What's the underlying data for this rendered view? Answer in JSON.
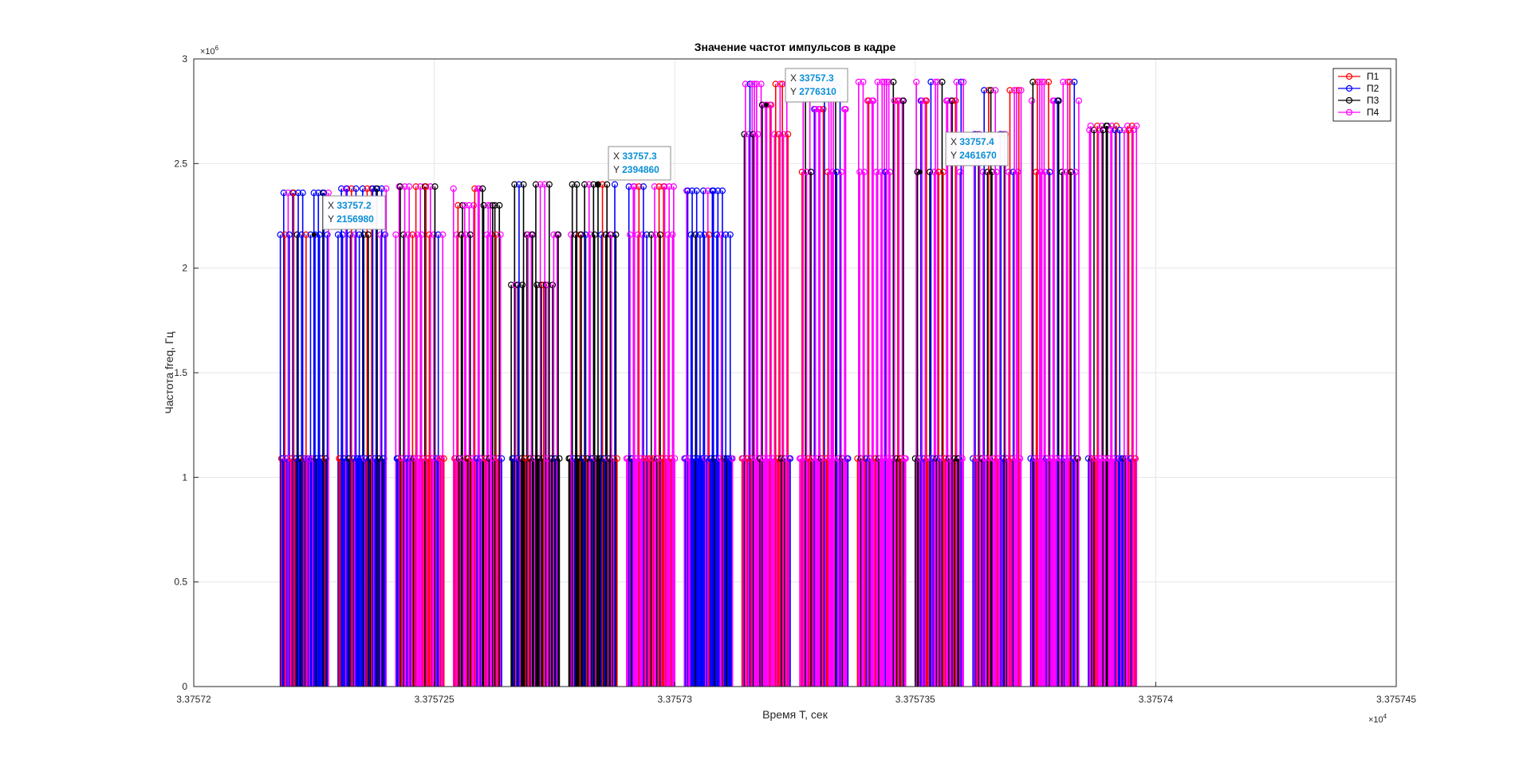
{
  "chart_data": {
    "type": "stem",
    "title": "Значение частот импульсов в кадре",
    "xlabel": "Время T, сек",
    "ylabel": "Частота freq, Гц",
    "xlim": [
      3.37572,
      3.375745
    ],
    "ylim": [
      0,
      3
    ],
    "x_scale_exponent_label": "×10",
    "x_scale_exponent_power": "4",
    "y_scale_exponent_label": "×10",
    "y_scale_exponent_power": "6",
    "x_ticks": [
      3.37572,
      3.375725,
      3.37573,
      3.375735,
      3.37574,
      3.375745
    ],
    "x_tick_labels": [
      "3.37572",
      "3.375725",
      "3.37573",
      "3.375735",
      "3.37574",
      "3.375745"
    ],
    "y_ticks": [
      0,
      0.5,
      1,
      1.5,
      2,
      2.5,
      3
    ],
    "y_tick_labels": [
      "0",
      "0.5",
      "1",
      "1.5",
      "2",
      "2.5",
      "3"
    ],
    "grid": true,
    "legend_position": "top-right",
    "series": [
      {
        "name": "П1",
        "color": "#ff0000"
      },
      {
        "name": "П2",
        "color": "#0000ff"
      },
      {
        "name": "П3",
        "color": "#000000"
      },
      {
        "name": "П4",
        "color": "#ff00ff"
      }
    ],
    "groups": [
      {
        "x_start": 3.3757218,
        "x_end": 3.3757228,
        "dominant": "П2",
        "levels": [
          2.16,
          2.36,
          1.09
        ]
      },
      {
        "x_start": 3.375723,
        "x_end": 3.375724,
        "dominant": "П2",
        "levels": [
          2.16,
          2.38,
          1.09
        ]
      },
      {
        "x_start": 3.3757242,
        "x_end": 3.3757252,
        "dominant": "П4",
        "levels": [
          2.16,
          2.39,
          1.09
        ]
      },
      {
        "x_start": 3.3757254,
        "x_end": 3.3757264,
        "dominant": "П4",
        "levels": [
          2.16,
          2.38,
          2.3,
          1.09
        ]
      },
      {
        "x_start": 3.3757266,
        "x_end": 3.3757276,
        "dominant": "П3",
        "levels": [
          2.4,
          2.16,
          1.92,
          1.09
        ]
      },
      {
        "x_start": 3.3757278,
        "x_end": 3.3757288,
        "dominant": "П3",
        "levels": [
          2.4,
          2.16,
          1.09
        ]
      },
      {
        "x_start": 3.375729,
        "x_end": 3.37573,
        "dominant": "П4",
        "levels": [
          2.16,
          2.39,
          1.09
        ]
      },
      {
        "x_start": 3.3757302,
        "x_end": 3.3757312,
        "dominant": "П2",
        "levels": [
          2.16,
          2.37,
          1.09
        ]
      },
      {
        "x_start": 3.3757314,
        "x_end": 3.3757324,
        "dominant": "П4",
        "levels": [
          2.64,
          2.78,
          2.88,
          1.09
        ]
      },
      {
        "x_start": 3.3757326,
        "x_end": 3.3757336,
        "dominant": "П4",
        "levels": [
          2.46,
          2.76,
          2.88,
          1.09
        ]
      },
      {
        "x_start": 3.3757338,
        "x_end": 3.3757348,
        "dominant": "П4",
        "levels": [
          2.46,
          2.8,
          2.89,
          1.09
        ]
      },
      {
        "x_start": 3.375735,
        "x_end": 3.375736,
        "dominant": "П4",
        "levels": [
          2.46,
          2.8,
          2.89,
          1.09
        ]
      },
      {
        "x_start": 3.3757362,
        "x_end": 3.3757372,
        "dominant": "П4",
        "levels": [
          2.46,
          2.64,
          2.85,
          1.09
        ]
      },
      {
        "x_start": 3.3757374,
        "x_end": 3.3757384,
        "dominant": "П4",
        "levels": [
          2.46,
          2.8,
          2.89,
          1.09
        ]
      },
      {
        "x_start": 3.3757386,
        "x_end": 3.3757396,
        "dominant": "П4",
        "levels": [
          2.66,
          2.68,
          1.09
        ]
      }
    ],
    "datatips": [
      {
        "x_label": "X",
        "x_value": "33757.2",
        "y_label": "Y",
        "y_value": "2156980"
      },
      {
        "x_label": "X",
        "x_value": "33757.3",
        "y_label": "Y",
        "y_value": "2394860"
      },
      {
        "x_label": "X",
        "x_value": "33757.3",
        "y_label": "Y",
        "y_value": "2776310"
      },
      {
        "x_label": "X",
        "x_value": "33757.4",
        "y_label": "Y",
        "y_value": "2461670"
      }
    ]
  }
}
